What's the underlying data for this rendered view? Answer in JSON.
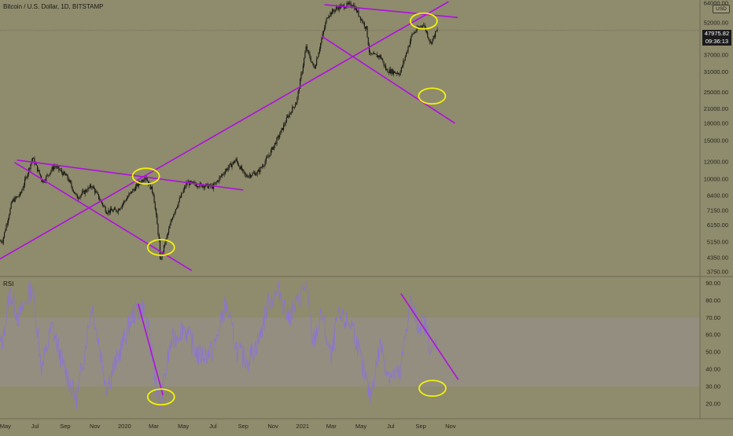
{
  "header": {
    "title": "Bitcoin / U.S. Dollar, 1D, BITSTAMP",
    "currency_tag": "USD",
    "current_price": "47975.82",
    "countdown": "09:36:13"
  },
  "colors": {
    "background": "#8f8b6d",
    "candle": "#14140f",
    "trendline": "#b00fe0",
    "highlight": "#f2f20a",
    "rsi_line": "#8a70e0",
    "rsi_band": "#9a94a0",
    "separator": "#6e6b55",
    "price_line": "#6b6857"
  },
  "chart_data": [
    {
      "type": "candlestick",
      "title": "Bitcoin / U.S. Dollar, 1D, BITSTAMP",
      "x_tick_labels": [
        "May",
        "Jul",
        "Sep",
        "Nov",
        "2020",
        "Mar",
        "May",
        "Jul",
        "Sep",
        "Nov",
        "2021",
        "Mar",
        "May",
        "Jul",
        "Sep",
        "Nov"
      ],
      "y_tick_labels": [
        "64000.00",
        "52000.00",
        "37000.00",
        "31000.00",
        "25000.00",
        "21000.00",
        "18000.00",
        "15000.00",
        "12000.00",
        "10000.00",
        "8400.00",
        "7150.00",
        "6150.00",
        "5150.00",
        "4350.00",
        "3750.00"
      ],
      "y_scale": "log",
      "ylim": [
        3750,
        64000
      ],
      "grid": false,
      "current_price": 47975.82,
      "series": [
        {
          "x": [
            "2019-04-25",
            "2019-05-15",
            "2019-06-01",
            "2019-06-26",
            "2019-07-17",
            "2019-08-10",
            "2019-09-05",
            "2019-09-25",
            "2019-10-26",
            "2019-11-25",
            "2019-12-18",
            "2020-01-15",
            "2020-02-13",
            "2020-02-29",
            "2020-03-12",
            "2020-03-14",
            "2020-04-10",
            "2020-05-08",
            "2020-06-01",
            "2020-07-01",
            "2020-07-27",
            "2020-08-17",
            "2020-09-05",
            "2020-10-01",
            "2020-10-21",
            "2020-11-15",
            "2020-12-01",
            "2020-12-20",
            "2021-01-08",
            "2021-01-25",
            "2021-02-21",
            "2021-03-13",
            "2021-04-14",
            "2021-05-12",
            "2021-05-19",
            "2021-06-10",
            "2021-06-22",
            "2021-07-20",
            "2021-08-14",
            "2021-09-06",
            "2021-09-21",
            "2021-10-04"
          ],
          "values": [
            5200,
            7900,
            8500,
            12500,
            9700,
            11500,
            10200,
            8200,
            9300,
            7100,
            7200,
            8700,
            10300,
            8600,
            5200,
            4200,
            6900,
            9600,
            9400,
            9200,
            11000,
            12200,
            10300,
            10700,
            12500,
            16000,
            19200,
            22800,
            40000,
            32000,
            56000,
            61000,
            63500,
            49000,
            37000,
            36500,
            31500,
            30500,
            46000,
            51500,
            42000,
            47975
          ]
        }
      ],
      "trendlines": [
        {
          "from": [
            "2019-04-20",
            4300
          ],
          "to": [
            "2021-10-28",
            65000
          ]
        },
        {
          "from": [
            "2019-05-25",
            12200
          ],
          "to": [
            "2020-09-01",
            8900
          ]
        },
        {
          "from": [
            "2019-05-20",
            11900
          ],
          "to": [
            "2020-05-18",
            3800
          ]
        },
        {
          "from": [
            "2021-02-15",
            63000
          ],
          "to": [
            "2021-11-16",
            55000
          ]
        },
        {
          "from": [
            "2021-02-10",
            45000
          ],
          "to": [
            "2021-11-10",
            18000
          ]
        }
      ],
      "highlighted_regions": [
        {
          "x": "2020-02-14",
          "y": 10300
        },
        {
          "x": "2020-03-16",
          "y": 4850
        },
        {
          "x": "2021-09-07",
          "y": 53000
        },
        {
          "x": "2021-09-24",
          "y": 24000
        }
      ]
    },
    {
      "type": "line",
      "title": "RSI",
      "y_tick_labels": [
        "90.00",
        "80.00",
        "70.00",
        "60.00",
        "50.00",
        "40.00",
        "30.00",
        "20.00"
      ],
      "ylim": [
        15,
        92
      ],
      "band": [
        30,
        70
      ],
      "series": [
        {
          "x": [
            "2019-04-25",
            "2019-05-10",
            "2019-05-28",
            "2019-06-26",
            "2019-07-15",
            "2019-08-05",
            "2019-08-28",
            "2019-09-25",
            "2019-10-26",
            "2019-11-25",
            "2019-12-20",
            "2020-01-18",
            "2020-02-10",
            "2020-02-29",
            "2020-03-13",
            "2020-04-05",
            "2020-05-01",
            "2020-06-01",
            "2020-07-01",
            "2020-07-27",
            "2020-08-20",
            "2020-09-10",
            "2020-10-05",
            "2020-10-22",
            "2020-11-15",
            "2020-12-02",
            "2020-12-20",
            "2021-01-08",
            "2021-01-22",
            "2021-02-10",
            "2021-03-01",
            "2021-03-13",
            "2021-04-14",
            "2021-05-05",
            "2021-05-20",
            "2021-06-10",
            "2021-06-25",
            "2021-07-20",
            "2021-08-10",
            "2021-08-25",
            "2021-09-10",
            "2021-09-25",
            "2021-10-04"
          ],
          "values": [
            55,
            85,
            70,
            88,
            40,
            65,
            42,
            22,
            78,
            30,
            48,
            72,
            76,
            45,
            18,
            55,
            65,
            48,
            50,
            78,
            50,
            45,
            58,
            79,
            85,
            70,
            78,
            90,
            55,
            72,
            45,
            70,
            66,
            40,
            24,
            55,
            38,
            36,
            80,
            66,
            66,
            48,
            58
          ]
        }
      ],
      "trendlines": [
        {
          "from": [
            "2020-01-29",
            78
          ],
          "to": [
            "2020-03-20",
            25
          ]
        },
        {
          "from": [
            "2021-07-22",
            84
          ],
          "to": [
            "2021-11-17",
            34
          ]
        }
      ],
      "highlighted_regions": [
        {
          "x": "2020-03-16",
          "y": 24
        },
        {
          "x": "2021-09-25",
          "y": 29
        }
      ]
    }
  ]
}
